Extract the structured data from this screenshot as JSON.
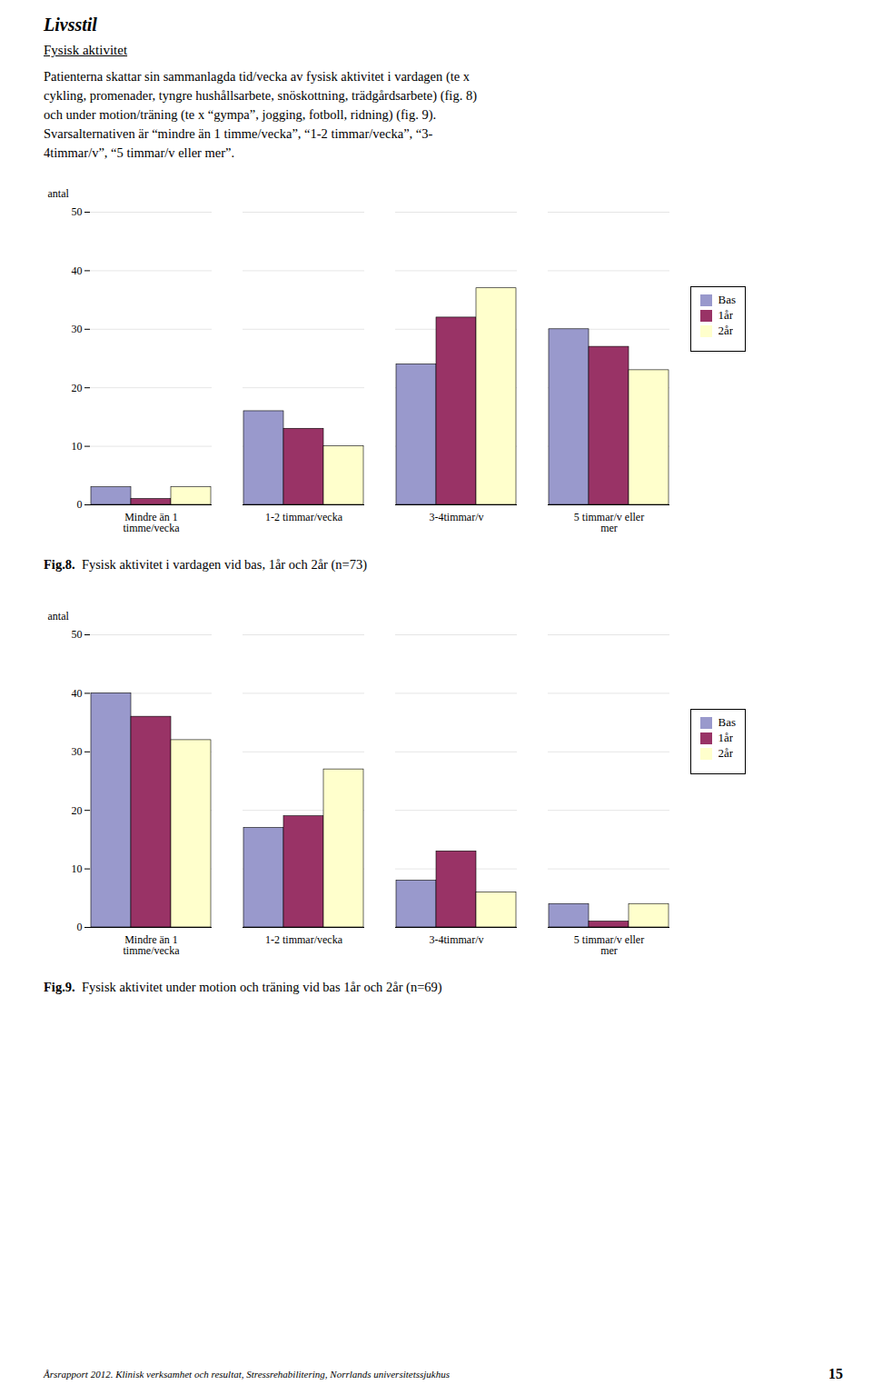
{
  "title": "Livsstil",
  "subtitle": "Fysisk aktivitet",
  "annotations": [
    "Patienterna skattar sin sammanlagda tid/vecka av fysisk aktivitet i vardagen (te x\ncykling, promenader, tyngre hushållsarbete, snöskottning, trädgårdsarbete) (fig. 8)\noch under motion/träning (te x “gympa”, jogging, fotboll, ridning) (fig. 9).\nSvarsalternativen är “mindre än 1 timme/vecka”, “1-2 timmar/vecka”, “3-\n4timmar/v”, “5 timmar/v eller mer”.",
    "Årsrapport 2012. Klinisk verksamhet och resultat, Stressrehabilitering, Norrlands universitetssjukhus",
    "15"
  ],
  "chart_data": [
    {
      "type": "bar",
      "title": "Fig.8. Fysisk aktivitet i vardagen vid bas, 1år och 2år (n=73)",
      "categories": [
        "Mindre än 1\ntimme/vecka",
        "1-2 timmar/vecka",
        "3-4timmar/v",
        "5 timmar/v eller\nmer"
      ],
      "series": [
        {
          "name": "Bas",
          "color": "#9999CC",
          "values": [
            3,
            16,
            24,
            30
          ]
        },
        {
          "name": "1år",
          "color": "#993366",
          "values": [
            1,
            13,
            32,
            27
          ]
        },
        {
          "name": "2år",
          "color": "#FFFFCC",
          "values": [
            3,
            10,
            37,
            23
          ]
        }
      ],
      "ylabel": "antal",
      "ylim": [
        0,
        50
      ],
      "yticks": [
        0,
        10,
        20,
        30,
        40,
        50
      ],
      "grid": true,
      "legend": "right"
    },
    {
      "type": "bar",
      "title": "Fig.9. Fysisk aktivitet under motion och träning vid bas 1år och 2år (n=69)",
      "categories": [
        "Mindre än 1\ntimme/vecka",
        "1-2 timmar/vecka",
        "3-4timmar/v",
        "5 timmar/v eller\nmer"
      ],
      "series": [
        {
          "name": "Bas",
          "color": "#9999CC",
          "values": [
            40,
            17,
            8,
            4
          ]
        },
        {
          "name": "1år",
          "color": "#993366",
          "values": [
            36,
            19,
            13,
            1
          ]
        },
        {
          "name": "2år",
          "color": "#FFFFCC",
          "values": [
            32,
            27,
            6,
            4
          ]
        }
      ],
      "ylabel": "antal",
      "ylim": [
        0,
        50
      ],
      "yticks": [
        0,
        10,
        20,
        30,
        40,
        50
      ],
      "grid": true,
      "legend": "right"
    }
  ]
}
